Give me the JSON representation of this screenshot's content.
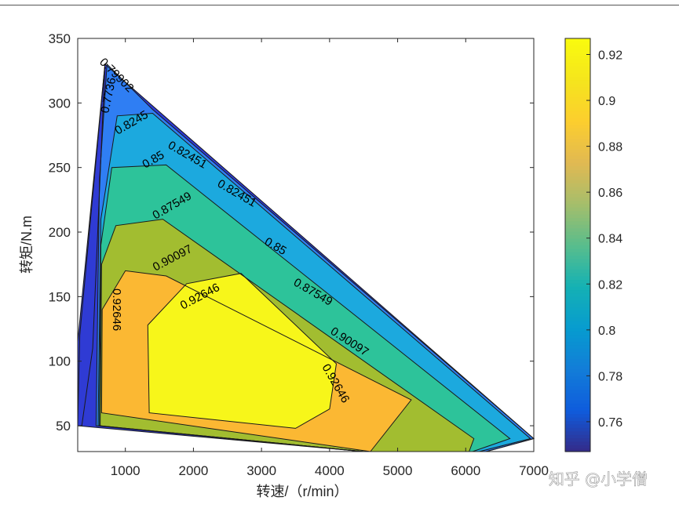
{
  "chart_data": {
    "type": "filled-contour",
    "title": "",
    "xlabel": "转速/（r/min）",
    "ylabel": "转矩/N.m",
    "xlim": [
      300,
      7000
    ],
    "ylim": [
      30,
      350
    ],
    "xticks": [
      1000,
      2000,
      3000,
      4000,
      5000,
      6000,
      7000
    ],
    "yticks": [
      50,
      100,
      150,
      200,
      250,
      300,
      350
    ],
    "grid": false,
    "colormap": "parula",
    "colorbar": {
      "position": "right",
      "range": [
        0.747,
        0.927
      ],
      "ticks": [
        0.76,
        0.78,
        0.8,
        0.82,
        0.84,
        0.86,
        0.88,
        0.9,
        0.92
      ]
    },
    "envelope": [
      [
        300,
        50
      ],
      [
        300,
        115
      ],
      [
        700,
        330
      ],
      [
        7000,
        40
      ],
      [
        6300,
        30
      ],
      [
        4500,
        30
      ]
    ],
    "levels": [
      {
        "level": 0.7736,
        "color": "#2f3bd4",
        "region": [
          [
            330,
            120
          ],
          [
            700,
            330
          ],
          [
            520,
            110
          ],
          [
            360,
            50
          ],
          [
            300,
            50
          ]
        ]
      },
      {
        "level": 0.79902,
        "color": "#2f7ef3",
        "region": [
          [
            570,
            50
          ],
          [
            620,
            240
          ],
          [
            730,
            330
          ],
          [
            1400,
            295
          ],
          [
            7000,
            40
          ],
          [
            6300,
            30
          ],
          [
            4500,
            30
          ]
        ]
      },
      {
        "level": 0.8245,
        "color": "#1ca9de",
        "region": [
          [
            600,
            50
          ],
          [
            640,
            210
          ],
          [
            880,
            290
          ],
          [
            1400,
            292
          ],
          [
            6950,
            40
          ],
          [
            6200,
            30
          ],
          [
            4500,
            30
          ]
        ]
      },
      {
        "level": 0.85,
        "color": "#2dc39a",
        "region": [
          [
            620,
            50
          ],
          [
            640,
            190
          ],
          [
            800,
            250
          ],
          [
            1600,
            252
          ],
          [
            6650,
            40
          ],
          [
            6100,
            30
          ],
          [
            4500,
            30
          ]
        ]
      },
      {
        "level": 0.87549,
        "color": "#a2bd30",
        "region": [
          [
            630,
            50
          ],
          [
            650,
            175
          ],
          [
            860,
            205
          ],
          [
            1550,
            210
          ],
          [
            6120,
            40
          ],
          [
            6050,
            30
          ],
          [
            4500,
            30
          ]
        ]
      },
      {
        "level": 0.90097,
        "color": "#fbb833",
        "region": [
          [
            650,
            60
          ],
          [
            660,
            140
          ],
          [
            1000,
            170
          ],
          [
            1600,
            166
          ],
          [
            5200,
            70
          ],
          [
            4600,
            30
          ]
        ]
      },
      {
        "level": 0.92646,
        "color": "#f7f61a",
        "region": [
          [
            1350,
            60
          ],
          [
            1330,
            128
          ],
          [
            1900,
            160
          ],
          [
            2700,
            168
          ],
          [
            4100,
            98
          ],
          [
            4000,
            63
          ],
          [
            3500,
            48
          ]
        ]
      }
    ],
    "contour_labels": [
      "0.7736",
      "0.79902",
      "0.8245",
      "0.82451",
      "0.82451",
      "0.85",
      "0.85",
      "0.87549",
      "0.87549",
      "0.90097",
      "0.90097",
      "0.92646",
      "0.92646",
      "0.92646"
    ]
  },
  "watermark": "知乎 @小学僧"
}
